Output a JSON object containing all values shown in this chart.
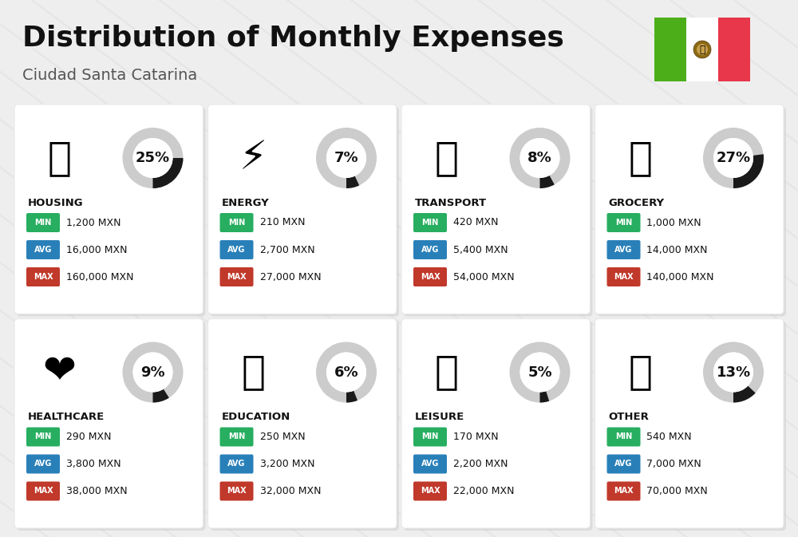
{
  "title": "Distribution of Monthly Expenses",
  "subtitle": "Ciudad Santa Catarina",
  "background_color": "#eeeeee",
  "categories": [
    {
      "name": "HOUSING",
      "pct": 25,
      "min": "1,200 MXN",
      "avg": "16,000 MXN",
      "max": "160,000 MXN",
      "col": 0,
      "row": 0
    },
    {
      "name": "ENERGY",
      "pct": 7,
      "min": "210 MXN",
      "avg": "2,700 MXN",
      "max": "27,000 MXN",
      "col": 1,
      "row": 0
    },
    {
      "name": "TRANSPORT",
      "pct": 8,
      "min": "420 MXN",
      "avg": "5,400 MXN",
      "max": "54,000 MXN",
      "col": 2,
      "row": 0
    },
    {
      "name": "GROCERY",
      "pct": 27,
      "min": "1,000 MXN",
      "avg": "14,000 MXN",
      "max": "140,000 MXN",
      "col": 3,
      "row": 0
    },
    {
      "name": "HEALTHCARE",
      "pct": 9,
      "min": "290 MXN",
      "avg": "3,800 MXN",
      "max": "38,000 MXN",
      "col": 0,
      "row": 1
    },
    {
      "name": "EDUCATION",
      "pct": 6,
      "min": "250 MXN",
      "avg": "3,200 MXN",
      "max": "32,000 MXN",
      "col": 1,
      "row": 1
    },
    {
      "name": "LEISURE",
      "pct": 5,
      "min": "170 MXN",
      "avg": "2,200 MXN",
      "max": "22,000 MXN",
      "col": 2,
      "row": 1
    },
    {
      "name": "OTHER",
      "pct": 13,
      "min": "540 MXN",
      "avg": "7,000 MXN",
      "max": "70,000 MXN",
      "col": 3,
      "row": 1
    }
  ],
  "min_color": "#27ae60",
  "avg_color": "#2980b9",
  "max_color": "#c0392b",
  "ring_bg_color": "#cccccc",
  "ring_fg_color": "#1a1a1a",
  "text_dark": "#111111",
  "title_fontsize": 26,
  "subtitle_fontsize": 14,
  "cat_fontsize": 9.5,
  "pct_fontsize": 13,
  "val_fontsize": 9,
  "badge_fontsize": 7
}
